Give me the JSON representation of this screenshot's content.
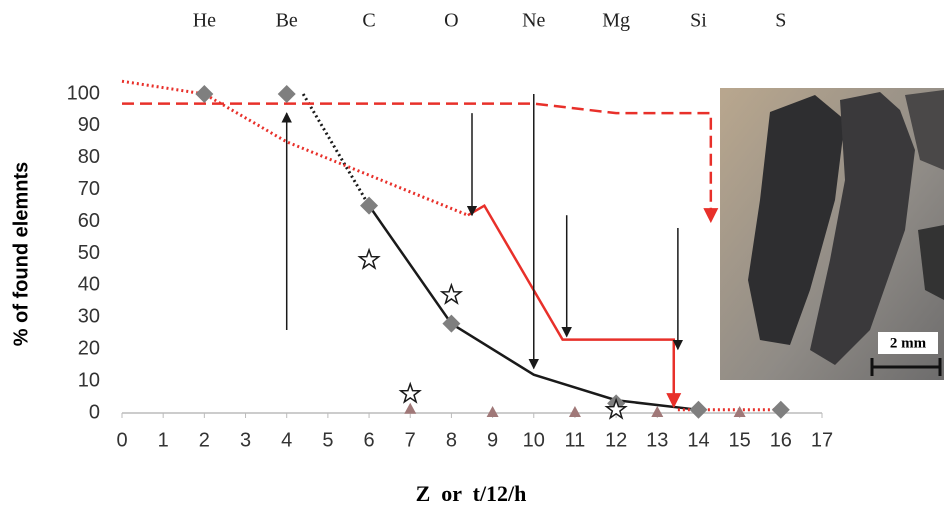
{
  "chart_data": {
    "type": "scatter-line",
    "top_ticks": [
      {
        "value": 2,
        "label": "He"
      },
      {
        "value": 4,
        "label": "Be"
      },
      {
        "value": 6,
        "label": "C"
      },
      {
        "value": 8,
        "label": "O"
      },
      {
        "value": 10,
        "label": "Ne"
      },
      {
        "value": 12,
        "label": "Mg"
      },
      {
        "value": 14,
        "label": "Si"
      },
      {
        "value": 16,
        "label": "S"
      }
    ],
    "y_label": "% of found elemnts",
    "x_label": "Z  or  t/12/h",
    "xlim": [
      0,
      17
    ],
    "xticks": [
      0,
      1,
      2,
      3,
      4,
      5,
      6,
      7,
      8,
      9,
      10,
      11,
      12,
      13,
      14,
      15,
      16,
      17
    ],
    "ylim": [
      0,
      100
    ],
    "yticks": [
      0,
      10,
      20,
      30,
      40,
      50,
      60,
      70,
      80,
      90,
      100
    ],
    "series": [
      {
        "color": "#1a1a1a",
        "style": "dotted",
        "marker": "none",
        "x": [
          4.4,
          6
        ],
        "values": [
          100,
          65
        ]
      },
      {
        "color": "#1a1a1a",
        "style": "solid",
        "marker": "none",
        "x": [
          6,
          8,
          10,
          12,
          14
        ],
        "values": [
          65,
          28,
          12,
          4,
          1
        ]
      },
      {
        "color": "#e8302a",
        "style": "dotted",
        "marker": "none",
        "x": [
          0,
          2,
          4,
          8.4
        ],
        "values": [
          104,
          100,
          85,
          62
        ]
      },
      {
        "color": "#e8302a",
        "style": "dotted",
        "marker": "none",
        "x": [
          13.5,
          16
        ],
        "values": [
          1,
          1
        ]
      },
      {
        "color": "#e8302a",
        "style": "solid",
        "marker": "none",
        "arrow": true,
        "x": [
          8.4,
          8.8,
          10.7,
          13.4,
          13.4
        ],
        "values": [
          62,
          65,
          23,
          23,
          2
        ]
      },
      {
        "color": "#e8302a",
        "style": "dashed",
        "marker": "none",
        "arrow": true,
        "x": [
          0,
          10,
          12,
          14.3,
          14.3
        ],
        "values": [
          97,
          97,
          94,
          94,
          60
        ]
      },
      {
        "color": "#7f7f7f",
        "style": "none",
        "marker": "diamond",
        "x": [
          2,
          4,
          6,
          8,
          12,
          14,
          16
        ],
        "values": [
          100,
          100,
          65,
          28,
          3,
          1,
          1
        ]
      },
      {
        "color": "#1a1a1a",
        "style": "none",
        "marker": "star",
        "x": [
          6,
          7,
          8,
          12
        ],
        "values": [
          48,
          6,
          37,
          1
        ]
      },
      {
        "color": "#a07878",
        "style": "none",
        "marker": "triangle",
        "x": [
          7,
          9,
          11,
          13,
          15
        ],
        "values": [
          1,
          0,
          0,
          0,
          0
        ]
      }
    ],
    "arrows": [
      {
        "x": 4,
        "from": 26,
        "to": 94
      },
      {
        "x": 8.5,
        "from": 94,
        "to": 62
      },
      {
        "x": 10,
        "from": 100,
        "to": 14
      },
      {
        "x": 10.8,
        "from": 62,
        "to": 24
      },
      {
        "x": 13.5,
        "from": 58,
        "to": 20
      }
    ],
    "inset_label": "2 mm"
  }
}
